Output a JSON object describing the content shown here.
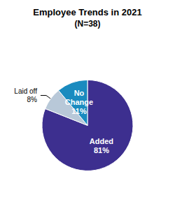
{
  "chart_data": {
    "type": "pie",
    "title": "Employee Trends in 2021",
    "subtitle": "(N=38)",
    "categories": [
      "Added",
      "Laid off",
      "No\nChange"
    ],
    "values": [
      81,
      8,
      11
    ],
    "value_labels": [
      "81%",
      "8%",
      "11%"
    ],
    "colors": [
      "#3d2f8f",
      "#b8c8d8",
      "#1a8bbf"
    ]
  }
}
